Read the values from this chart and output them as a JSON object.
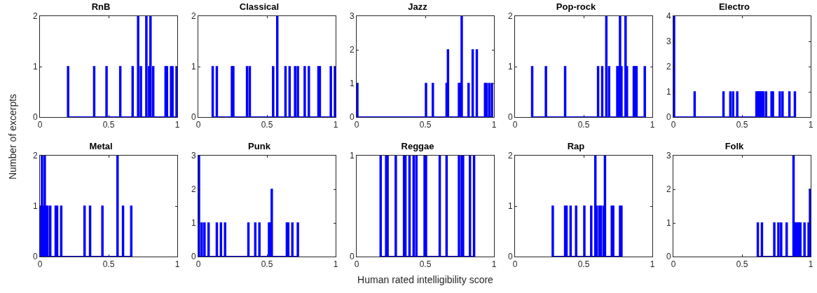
{
  "chart_data": [
    {
      "type": "histogram",
      "title": "RnB",
      "ylabel": "Number of excerpts",
      "color": "#0000ff",
      "xlim": [
        0,
        1
      ],
      "xticks": [
        0,
        0.5,
        1
      ],
      "ylim": [
        0,
        2
      ],
      "yticks": [
        0,
        1,
        2
      ],
      "bins": [
        0.2,
        0.21,
        0.39,
        0.4,
        0.48,
        0.49,
        0.58,
        0.59,
        0.67,
        0.68,
        0.71,
        0.72,
        0.73,
        0.74,
        0.77,
        0.78,
        0.79,
        0.8,
        0.81,
        0.82,
        0.83,
        0.91,
        0.92,
        0.93,
        0.95,
        0.96,
        0.97,
        0.99,
        1
      ],
      "values": [
        1,
        0,
        1,
        0,
        1,
        0,
        1,
        0,
        1,
        0,
        2,
        0,
        1,
        0,
        2,
        0,
        1,
        2,
        0,
        1,
        0,
        1,
        1,
        0,
        1,
        1,
        0,
        1
      ]
    },
    {
      "type": "histogram",
      "title": "Classical",
      "color": "#0000ff",
      "xlim": [
        0,
        1
      ],
      "xticks": [
        0,
        0.5,
        1
      ],
      "ylim": [
        0,
        2
      ],
      "yticks": [
        0,
        1,
        2
      ],
      "bins": [
        0.1,
        0.11,
        0.13,
        0.14,
        0.24,
        0.25,
        0.26,
        0.35,
        0.36,
        0.37,
        0.38,
        0.54,
        0.55,
        0.57,
        0.58,
        0.63,
        0.64,
        0.66,
        0.67,
        0.7,
        0.71,
        0.72,
        0.73,
        0.77,
        0.78,
        0.8,
        0.81,
        0.87,
        0.88,
        0.89,
        0.96,
        0.97,
        0.99,
        1
      ],
      "values": [
        1,
        0,
        1,
        0,
        1,
        1,
        0,
        1,
        0,
        1,
        0,
        1,
        0,
        2,
        0,
        1,
        0,
        1,
        0,
        1,
        0,
        1,
        0,
        1,
        0,
        1,
        0,
        1,
        1,
        0,
        1,
        0,
        1
      ]
    },
    {
      "type": "histogram",
      "title": "Jazz",
      "color": "#0000ff",
      "xlim": [
        0,
        1
      ],
      "xticks": [
        0,
        0.5,
        1
      ],
      "ylim": [
        0,
        3
      ],
      "yticks": [
        0,
        1,
        2,
        3
      ],
      "bins": [
        0,
        0.01,
        0.5,
        0.51,
        0.55,
        0.56,
        0.65,
        0.66,
        0.67,
        0.74,
        0.75,
        0.76,
        0.77,
        0.81,
        0.82,
        0.84,
        0.85,
        0.87,
        0.88,
        0.93,
        0.94,
        0.95,
        0.96,
        0.97,
        0.98,
        0.99
      ],
      "values": [
        1,
        0,
        1,
        0,
        1,
        0,
        1,
        2,
        0,
        1,
        1,
        3,
        0,
        1,
        0,
        2,
        0,
        2,
        0,
        1,
        1,
        0,
        1,
        0,
        1
      ]
    },
    {
      "type": "histogram",
      "title": "Pop-rock",
      "color": "#0000ff",
      "xlim": [
        0,
        1
      ],
      "xticks": [
        0,
        0.5,
        1
      ],
      "ylim": [
        0,
        2
      ],
      "yticks": [
        0,
        1,
        2
      ],
      "bins": [
        0.12,
        0.13,
        0.22,
        0.23,
        0.36,
        0.37,
        0.6,
        0.61,
        0.63,
        0.64,
        0.66,
        0.67,
        0.68,
        0.69,
        0.74,
        0.75,
        0.76,
        0.77,
        0.78,
        0.8,
        0.81,
        0.82,
        0.86,
        0.87,
        0.88,
        0.89,
        0.94,
        0.95
      ],
      "values": [
        1,
        0,
        1,
        0,
        1,
        0,
        1,
        0,
        1,
        0,
        2,
        0,
        1,
        0,
        1,
        1,
        2,
        1,
        0,
        2,
        1,
        0,
        1,
        1,
        1,
        0,
        1
      ]
    },
    {
      "type": "histogram",
      "title": "Electro",
      "color": "#0000ff",
      "xlim": [
        0,
        1
      ],
      "xticks": [
        0,
        0.5,
        1
      ],
      "ylim": [
        0,
        4
      ],
      "yticks": [
        0,
        1,
        2,
        3,
        4
      ],
      "bins": [
        0,
        0.01,
        0.15,
        0.16,
        0.36,
        0.37,
        0.41,
        0.42,
        0.43,
        0.44,
        0.46,
        0.47,
        0.6,
        0.61,
        0.62,
        0.63,
        0.64,
        0.65,
        0.66,
        0.67,
        0.68,
        0.71,
        0.72,
        0.73,
        0.77,
        0.78,
        0.79,
        0.8,
        0.84,
        0.85,
        0.88,
        0.89
      ],
      "values": [
        4,
        0,
        1,
        0,
        1,
        0,
        1,
        0,
        1,
        0,
        1,
        0,
        1,
        1,
        1,
        1,
        1,
        1,
        0,
        1,
        0,
        1,
        1,
        0,
        1,
        0,
        1,
        0,
        1,
        0,
        1
      ]
    },
    {
      "type": "histogram",
      "title": "Metal",
      "color": "#0000ff",
      "xlim": [
        0,
        1
      ],
      "xticks": [
        0,
        0.5,
        1
      ],
      "ylim": [
        0,
        2
      ],
      "yticks": [
        0,
        1,
        2
      ],
      "bins": [
        0,
        0.01,
        0.02,
        0.03,
        0.04,
        0.05,
        0.06,
        0.07,
        0.08,
        0.11,
        0.12,
        0.13,
        0.15,
        0.16,
        0.32,
        0.33,
        0.36,
        0.37,
        0.45,
        0.46,
        0.56,
        0.57,
        0.6,
        0.61,
        0.66,
        0.67
      ],
      "values": [
        1,
        2,
        1,
        2,
        1,
        1,
        0,
        1,
        0,
        1,
        1,
        0,
        1,
        0,
        1,
        0,
        1,
        0,
        1,
        0,
        2,
        0,
        1,
        0,
        1
      ]
    },
    {
      "type": "histogram",
      "title": "Punk",
      "color": "#0000ff",
      "xlim": [
        0,
        1
      ],
      "xticks": [
        0,
        0.5,
        1
      ],
      "ylim": [
        0,
        3
      ],
      "yticks": [
        0,
        1,
        2,
        3
      ],
      "bins": [
        0,
        0.01,
        0.02,
        0.03,
        0.04,
        0.05,
        0.07,
        0.08,
        0.13,
        0.14,
        0.16,
        0.17,
        0.19,
        0.2,
        0.36,
        0.37,
        0.41,
        0.42,
        0.44,
        0.45,
        0.51,
        0.52,
        0.53,
        0.54,
        0.64,
        0.65,
        0.66,
        0.68,
        0.69,
        0.72,
        0.73
      ],
      "values": [
        3,
        0,
        1,
        0,
        1,
        0,
        1,
        0,
        1,
        0,
        1,
        0,
        1,
        0,
        1,
        0,
        1,
        0,
        1,
        0,
        1,
        1,
        2,
        0,
        1,
        1,
        0,
        1,
        0,
        1
      ]
    },
    {
      "type": "histogram",
      "title": "Reggae",
      "xlabel": "Human rated intelligibility score",
      "color": "#0000ff",
      "xlim": [
        0,
        1
      ],
      "xticks": [
        0,
        0.5,
        1
      ],
      "ylim": [
        0,
        1
      ],
      "yticks": [
        0,
        1
      ],
      "bins": [
        0.17,
        0.18,
        0.21,
        0.22,
        0.23,
        0.28,
        0.29,
        0.34,
        0.35,
        0.36,
        0.38,
        0.39,
        0.41,
        0.42,
        0.43,
        0.44,
        0.49,
        0.5,
        0.51,
        0.6,
        0.61,
        0.65,
        0.66,
        0.74,
        0.75,
        0.76,
        0.77,
        0.78,
        0.82,
        0.83,
        0.85,
        0.86
      ],
      "values": [
        1,
        0,
        1,
        1,
        0,
        1,
        0,
        1,
        1,
        0,
        1,
        0,
        1,
        0,
        1,
        0,
        1,
        1,
        0,
        1,
        0,
        1,
        0,
        1,
        0,
        1,
        1,
        0,
        1,
        0,
        1
      ]
    },
    {
      "type": "histogram",
      "title": "Rap",
      "color": "#0000ff",
      "xlim": [
        0,
        1
      ],
      "xticks": [
        0,
        0.5,
        1
      ],
      "ylim": [
        0,
        2
      ],
      "yticks": [
        0,
        1,
        2
      ],
      "bins": [
        0.27,
        0.28,
        0.36,
        0.37,
        0.38,
        0.4,
        0.41,
        0.44,
        0.45,
        0.5,
        0.51,
        0.55,
        0.56,
        0.58,
        0.59,
        0.6,
        0.61,
        0.62,
        0.63,
        0.64,
        0.65,
        0.66,
        0.7,
        0.71,
        0.72,
        0.76,
        0.77,
        0.78
      ],
      "values": [
        1,
        0,
        1,
        1,
        0,
        1,
        0,
        1,
        0,
        1,
        0,
        1,
        0,
        2,
        1,
        0,
        1,
        1,
        0,
        1,
        2,
        0,
        1,
        1,
        0,
        1,
        1
      ]
    },
    {
      "type": "histogram",
      "title": "Folk",
      "color": "#0000ff",
      "xlim": [
        0,
        1
      ],
      "xticks": [
        0,
        0.5,
        1
      ],
      "ylim": [
        0,
        3
      ],
      "yticks": [
        0,
        1,
        2,
        3
      ],
      "bins": [
        0.61,
        0.62,
        0.64,
        0.65,
        0.73,
        0.74,
        0.76,
        0.77,
        0.78,
        0.79,
        0.82,
        0.83,
        0.87,
        0.88,
        0.89,
        0.9,
        0.91,
        0.92,
        0.93,
        0.95,
        0.96,
        0.98,
        0.99,
        1
      ],
      "values": [
        1,
        0,
        1,
        0,
        1,
        0,
        1,
        0,
        1,
        0,
        1,
        0,
        3,
        1,
        1,
        1,
        1,
        1,
        0,
        1,
        0,
        1,
        2
      ]
    }
  ]
}
